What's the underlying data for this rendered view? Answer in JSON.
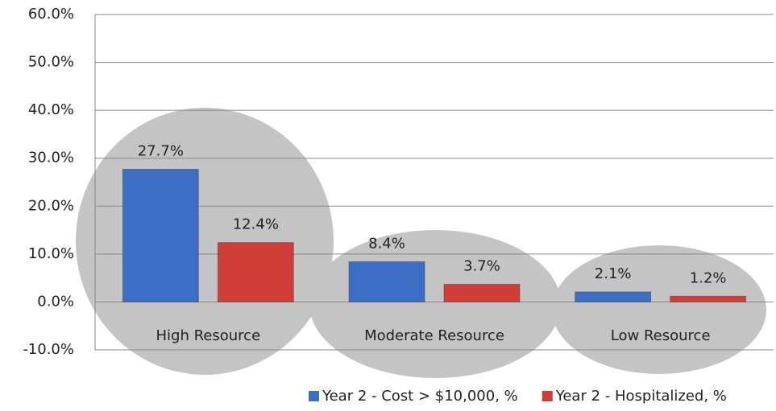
{
  "chart_data": {
    "type": "bar",
    "categories": [
      "High Resource",
      "Moderate Resource",
      "Low Resource"
    ],
    "series": [
      {
        "name": "Year 2 - Cost > $10,000, %",
        "color": "#3c6fc4",
        "values": [
          27.7,
          8.4,
          2.1
        ],
        "value_labels": [
          "27.7%",
          "8.4%",
          "2.1%"
        ]
      },
      {
        "name": "Year 2 - Hospitalized, %",
        "color": "#d03c38",
        "values": [
          12.4,
          3.7,
          1.2
        ],
        "value_labels": [
          "12.4%",
          "3.7%",
          "1.2%"
        ]
      }
    ],
    "ylim": [
      -10,
      60
    ],
    "yticks": [
      {
        "value": -10,
        "label": "-10.0%"
      },
      {
        "value": 0,
        "label": "0.0%"
      },
      {
        "value": 10,
        "label": "10.0%"
      },
      {
        "value": 20,
        "label": "20.0%"
      },
      {
        "value": 30,
        "label": "30.0%"
      },
      {
        "value": 40,
        "label": "40.0%"
      },
      {
        "value": 50,
        "label": "50.0%"
      },
      {
        "value": 60,
        "label": "60.0%"
      }
    ],
    "grid": true,
    "legend": "bottom"
  }
}
